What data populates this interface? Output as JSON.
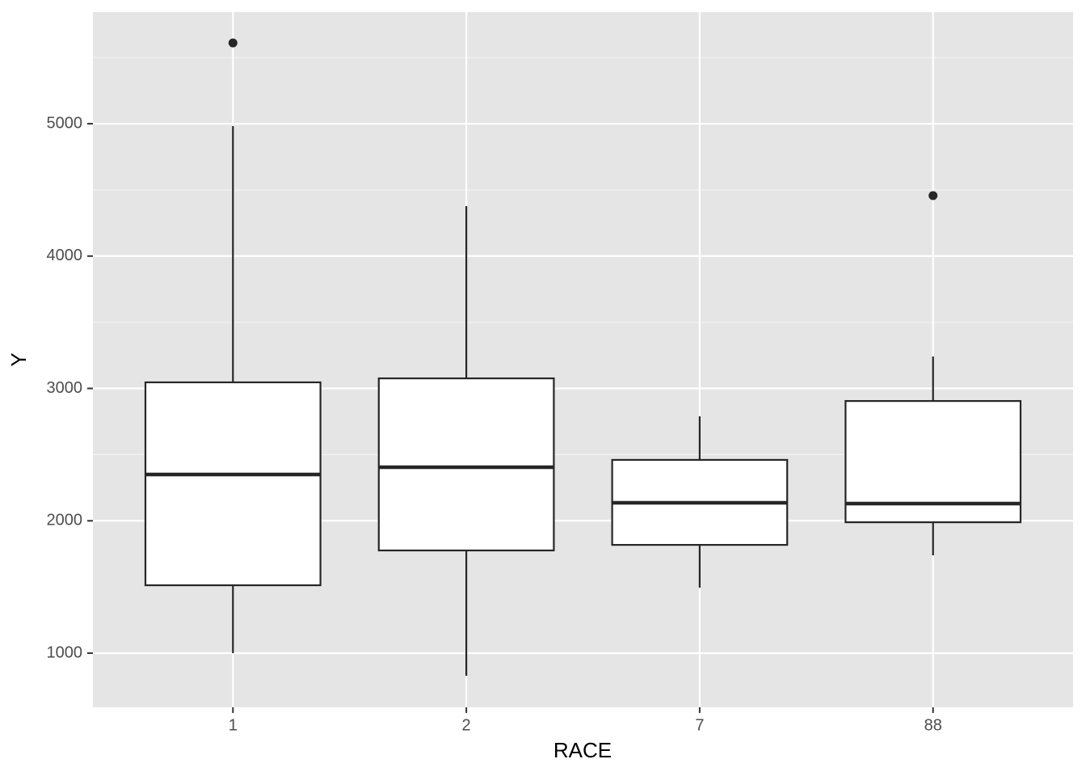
{
  "chart_data": {
    "type": "boxplot",
    "x_label": "RACE",
    "y_label": "Y",
    "categories": [
      "1",
      "2",
      "7",
      "88"
    ],
    "boxes": [
      {
        "whisker_low": 1000,
        "q1": 1513,
        "median": 2350,
        "q3": 3046,
        "whisker_high": 4982,
        "outliers": [
          5610
        ]
      },
      {
        "whisker_low": 829,
        "q1": 1776,
        "median": 2405,
        "q3": 3076,
        "whisker_high": 4377,
        "outliers": []
      },
      {
        "whisker_low": 1495,
        "q1": 1818,
        "median": 2136,
        "q3": 2460,
        "whisker_high": 2789,
        "outliers": []
      },
      {
        "whisker_low": 1739,
        "q1": 1989,
        "median": 2130,
        "q3": 2905,
        "whisker_high": 3241,
        "outliers": [
          4457
        ]
      }
    ],
    "ylim": [
      591,
      5843
    ],
    "yticks": [
      1000,
      2000,
      3000,
      4000,
      5000
    ],
    "grid": true,
    "panel_color": "#e5e5e5",
    "box_fill": "#ffffff",
    "line_color": "#262626"
  }
}
